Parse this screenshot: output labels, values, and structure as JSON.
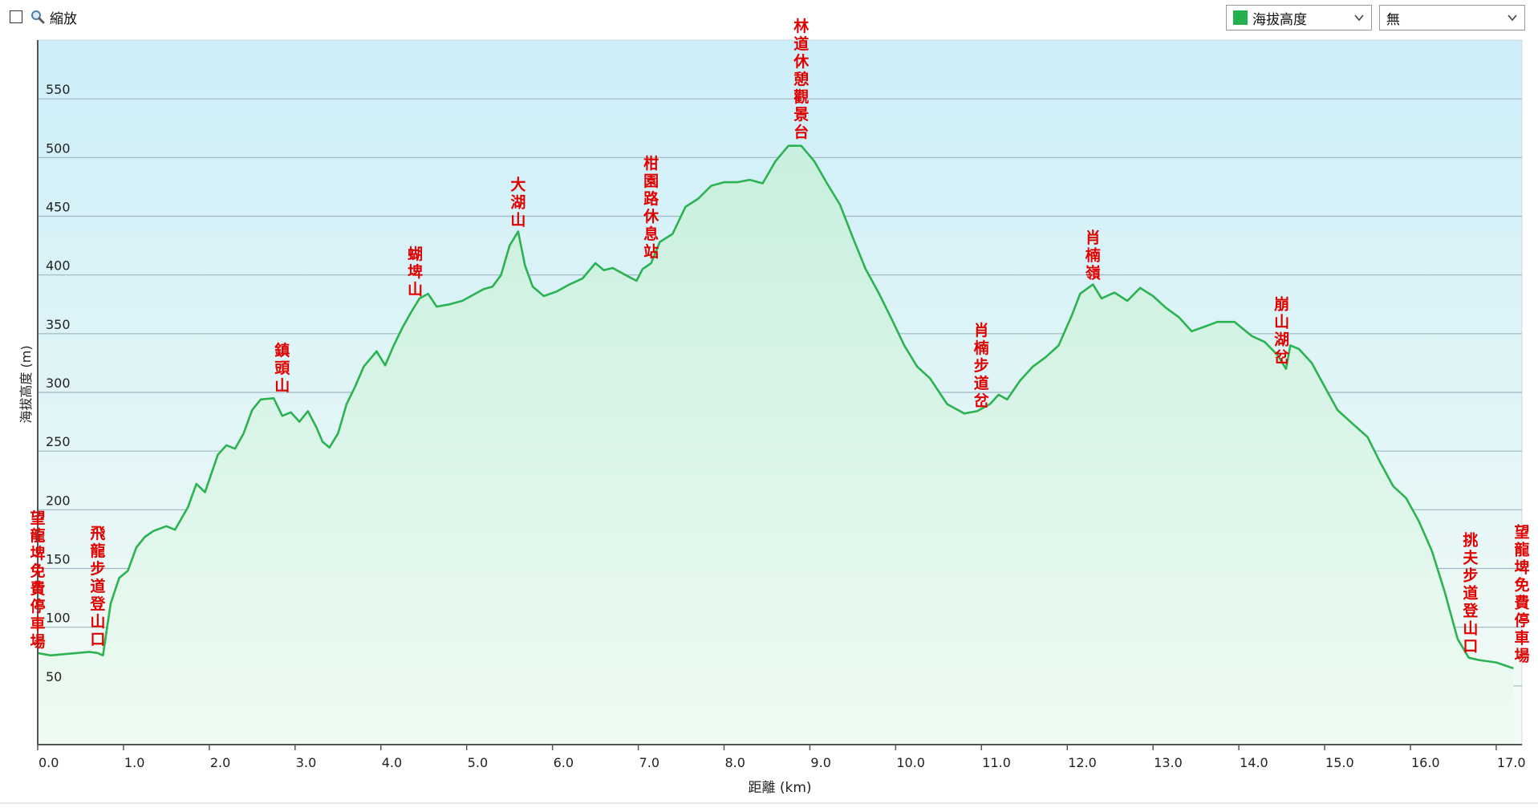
{
  "toolbar": {
    "zoom_label": "縮放",
    "zoom_checked": false,
    "series_select": {
      "selected": "海拔高度",
      "swatch_color": "#22b14c"
    },
    "mode_select": {
      "selected": "無"
    }
  },
  "colors": {
    "line": "#2ab350",
    "label": "#e00000",
    "grid": "#9fb6c2",
    "bg_top": "#cdeef8",
    "bg_bottom": "#f3fbf6",
    "fill_top": "#c9efde",
    "fill_bottom": "#eefbf3"
  },
  "chart_data": {
    "type": "area",
    "xlabel": "距離 (km)",
    "ylabel": "海拔高度 (m)",
    "xlim": [
      0,
      17.3
    ],
    "ylim": [
      0,
      600
    ],
    "xticks": [
      0,
      1,
      2,
      3,
      4,
      5,
      6,
      7,
      8,
      9,
      10,
      11,
      12,
      13,
      14,
      15,
      16,
      17
    ],
    "xtick_labels": [
      "0.0",
      "1.0",
      "2.0",
      "3.0",
      "4.0",
      "5.0",
      "6.0",
      "7.0",
      "8.0",
      "9.0",
      "10.0",
      "11.0",
      "12.0",
      "13.0",
      "14.0",
      "15.0",
      "16.0",
      "17.0"
    ],
    "yticks": [
      50,
      100,
      150,
      200,
      250,
      300,
      350,
      400,
      450,
      500,
      550
    ],
    "ytick_labels": [
      "50",
      "100",
      "150",
      "200",
      "250",
      "300",
      "350",
      "400",
      "450",
      "500",
      "550"
    ],
    "grid": true,
    "series": [
      {
        "x": [
          0,
          0.15,
          0.3,
          0.45,
          0.6,
          0.7,
          0.76,
          0.85,
          0.95,
          1.05,
          1.15,
          1.25,
          1.35,
          1.5,
          1.6,
          1.75,
          1.85,
          1.95,
          2.1,
          2.2,
          2.3,
          2.4,
          2.5,
          2.6,
          2.75,
          2.85,
          2.95,
          3.05,
          3.15,
          3.25,
          3.32,
          3.4,
          3.5,
          3.6,
          3.7,
          3.8,
          3.95,
          4.05,
          4.15,
          4.25,
          4.35,
          4.45,
          4.55,
          4.65,
          4.8,
          4.95,
          5.05,
          5.2,
          5.3,
          5.4,
          5.5,
          5.6,
          5.68,
          5.77,
          5.9,
          6.05,
          6.2,
          6.35,
          6.5,
          6.6,
          6.7,
          6.85,
          6.98,
          7.05,
          7.15,
          7.25,
          7.4,
          7.55,
          7.7,
          7.85,
          8.0,
          8.15,
          8.3,
          8.45,
          8.6,
          8.75,
          8.9,
          9.05,
          9.2,
          9.35,
          9.5,
          9.65,
          9.8,
          9.95,
          10.1,
          10.25,
          10.4,
          10.6,
          10.8,
          10.95,
          11.1,
          11.2,
          11.3,
          11.45,
          11.6,
          11.75,
          11.9,
          12.05,
          12.15,
          12.3,
          12.4,
          12.55,
          12.7,
          12.85,
          13.0,
          13.15,
          13.3,
          13.45,
          13.6,
          13.75,
          13.95,
          14.15,
          14.3,
          14.45,
          14.55,
          14.6,
          14.7,
          14.85,
          15.0,
          15.15,
          15.3,
          15.5,
          15.65,
          15.8,
          15.95,
          16.1,
          16.25,
          16.4,
          16.55,
          16.68,
          16.8,
          17.0,
          17.2
        ],
        "values": [
          78,
          76,
          77,
          78,
          79,
          78,
          76,
          120,
          142,
          148,
          168,
          177,
          182,
          186,
          183,
          202,
          222,
          215,
          247,
          255,
          252,
          265,
          285,
          294,
          295,
          280,
          283,
          275,
          284,
          270,
          258,
          253,
          265,
          290,
          305,
          322,
          335,
          323,
          340,
          355,
          368,
          380,
          384,
          373,
          375,
          378,
          382,
          388,
          390,
          400,
          425,
          437,
          408,
          390,
          382,
          386,
          392,
          397,
          410,
          404,
          406,
          400,
          395,
          405,
          410,
          428,
          435,
          458,
          465,
          476,
          479,
          479,
          481,
          478,
          497,
          510,
          510,
          497,
          478,
          460,
          432,
          405,
          385,
          363,
          340,
          322,
          312,
          290,
          282,
          284,
          290,
          298,
          294,
          310,
          322,
          330,
          340,
          365,
          384,
          392,
          380,
          385,
          378,
          389,
          382,
          372,
          364,
          352,
          356,
          360,
          360,
          348,
          343,
          332,
          320,
          340,
          337,
          325,
          305,
          285,
          275,
          262,
          240,
          220,
          210,
          190,
          165,
          130,
          90,
          74,
          72,
          70,
          65
        ]
      }
    ],
    "annotations": [
      {
        "text": "望龍埤免費停車場",
        "x": 0.0,
        "y": 78
      },
      {
        "text": "飛龍步道登山口",
        "x": 0.7,
        "y": 80
      },
      {
        "text": "鎮頭山",
        "x": 2.85,
        "y": 296
      },
      {
        "text": "蝴埤山",
        "x": 4.4,
        "y": 378
      },
      {
        "text": "大湖山",
        "x": 5.6,
        "y": 437
      },
      {
        "text": "柑園路休息站",
        "x": 7.15,
        "y": 410
      },
      {
        "text": "林道休憩觀景台",
        "x": 8.9,
        "y": 512
      },
      {
        "text": "肖楠步道岔",
        "x": 11.0,
        "y": 283
      },
      {
        "text": "肖楠嶺",
        "x": 12.3,
        "y": 392
      },
      {
        "text": "崩山湖岔",
        "x": 14.5,
        "y": 320
      },
      {
        "text": "挑夫步道登山口",
        "x": 16.7,
        "y": 74
      },
      {
        "text": "望龍埤免費停車場",
        "x": 17.3,
        "y": 66
      }
    ]
  }
}
